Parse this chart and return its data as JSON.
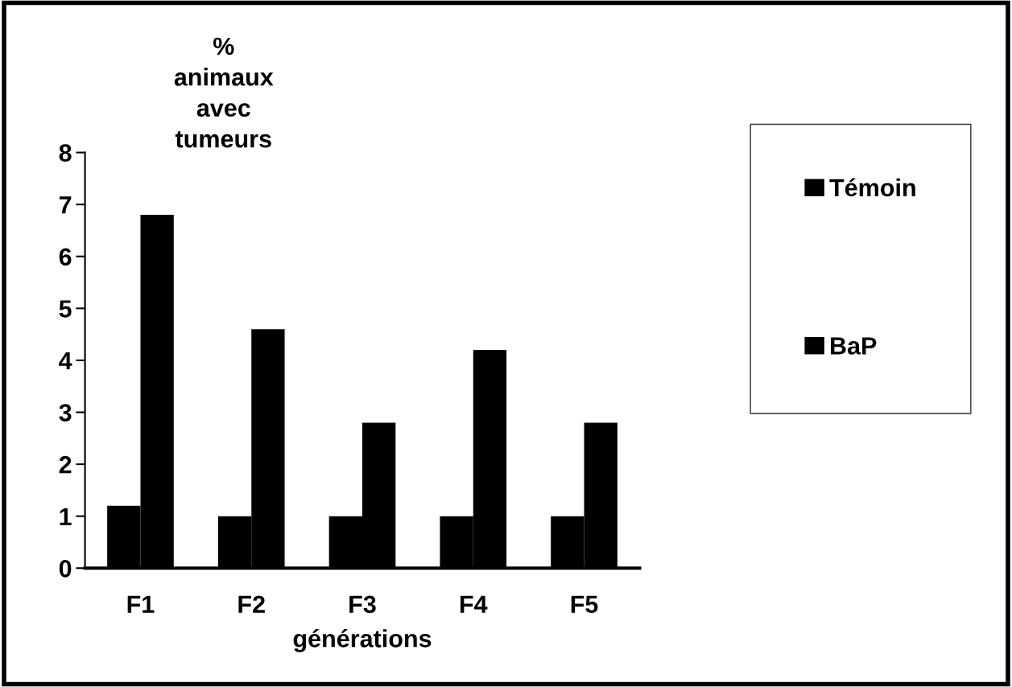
{
  "chart_data": {
    "type": "bar",
    "ylabel": "%\nanimaux\navec\ntumeurs",
    "xlabel": "générations",
    "categories": [
      "F1",
      "F2",
      "F3",
      "F4",
      "F5"
    ],
    "series": [
      {
        "name": "Témoin",
        "color": "#000000",
        "values": [
          1.2,
          1.0,
          1.0,
          1.0,
          1.0
        ]
      },
      {
        "name": "BaP",
        "color": "#000000",
        "values": [
          6.8,
          4.6,
          2.8,
          4.2,
          2.8
        ]
      }
    ],
    "ylim": [
      0,
      8
    ],
    "yticks": [
      0,
      1,
      2,
      3,
      4,
      5,
      6,
      7,
      8
    ],
    "grid": false,
    "legend": "right"
  }
}
